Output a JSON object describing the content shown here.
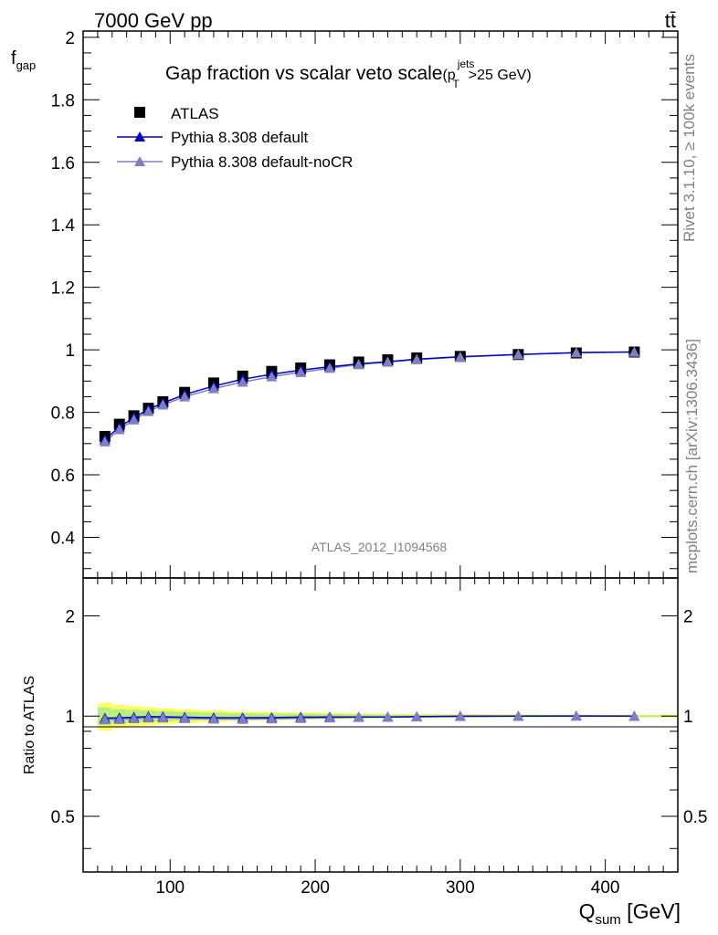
{
  "header": {
    "energy_label": "7000 GeV pp",
    "process_label": "tt̄",
    "side_rivet": "Rivet 3.1.10, ≥ 100k events",
    "side_source": "mcplots.cern.ch [arXiv:1306.3436]",
    "analysis_id": "ATLAS_2012_I1094568"
  },
  "colors": {
    "data": "#000000",
    "default": "#0000cc",
    "nocr": "#7f7fbf",
    "band_inner": "#b6f07a",
    "band_outer": "#ffff66"
  },
  "chart_data": [
    {
      "type": "line",
      "title": "Gap fraction vs scalar veto scale",
      "title_suffix": {
        "prefix": "(p",
        "sup": "jets",
        "sub": "T",
        "suffix": ">25 GeV)"
      },
      "ylabel": {
        "main": "f",
        "sub": "gap"
      },
      "xlim": [
        40,
        450
      ],
      "ylim": [
        0.27,
        2.02
      ],
      "yticks": [
        "0.4",
        "0.6",
        "0.8",
        "1",
        "1.2",
        "1.4",
        "1.6",
        "1.8",
        "2"
      ],
      "legend_position": "top-left",
      "x": [
        55,
        65,
        75,
        85,
        95,
        110,
        130,
        150,
        170,
        190,
        210,
        230,
        250,
        270,
        300,
        340,
        380,
        420
      ],
      "series": [
        {
          "name": "ATLAS",
          "marker": "square",
          "values": [
            0.723,
            0.762,
            0.789,
            0.813,
            0.834,
            0.864,
            0.894,
            0.916,
            0.931,
            0.942,
            0.952,
            0.961,
            0.968,
            0.974,
            0.979,
            0.985,
            0.99,
            0.993
          ]
        },
        {
          "name": "Pythia 8.308 default",
          "marker": "triangle",
          "values": [
            0.713,
            0.753,
            0.783,
            0.81,
            0.83,
            0.857,
            0.884,
            0.906,
            0.922,
            0.935,
            0.946,
            0.955,
            0.962,
            0.97,
            0.978,
            0.985,
            0.991,
            0.993
          ]
        },
        {
          "name": "Pythia 8.308 default-noCR",
          "marker": "triangle",
          "values": [
            0.706,
            0.745,
            0.776,
            0.803,
            0.824,
            0.85,
            0.876,
            0.897,
            0.914,
            0.928,
            0.941,
            0.953,
            0.961,
            0.969,
            0.977,
            0.985,
            0.991,
            0.993
          ]
        }
      ]
    },
    {
      "type": "line",
      "title": "",
      "ylabel": "Ratio to ATLAS",
      "xlabel": {
        "main": "Q",
        "sub": "sum",
        "unit": " [GeV]"
      },
      "xlim": [
        40,
        450
      ],
      "ylim": [
        0.34,
        2.6
      ],
      "log_y": true,
      "xticks": [
        "100",
        "200",
        "300",
        "400"
      ],
      "yticks": [
        "0.5",
        "1",
        "2"
      ],
      "x": [
        55,
        65,
        75,
        85,
        95,
        110,
        130,
        150,
        170,
        190,
        210,
        230,
        250,
        270,
        300,
        340,
        380,
        420
      ],
      "series": [
        {
          "name": "Pythia 8.308 default",
          "values": [
            0.986,
            0.988,
            0.992,
            0.996,
            0.995,
            0.992,
            0.989,
            0.989,
            0.99,
            0.993,
            0.994,
            0.994,
            0.994,
            0.996,
            0.999,
            1.0,
            1.001,
            1.0
          ]
        },
        {
          "name": "Pythia 8.308 default-noCR",
          "values": [
            0.976,
            0.978,
            0.983,
            0.988,
            0.988,
            0.984,
            0.98,
            0.979,
            0.982,
            0.985,
            0.988,
            0.992,
            0.993,
            0.995,
            0.998,
            1.0,
            1.001,
            1.0
          ]
        }
      ],
      "band_rel_err": [
        0.06,
        0.05,
        0.045,
        0.04,
        0.035,
        0.03,
        0.025,
        0.02,
        0.018,
        0.016,
        0.014,
        0.012,
        0.01,
        0.009,
        0.008,
        0.007,
        0.006,
        0.006
      ]
    }
  ]
}
